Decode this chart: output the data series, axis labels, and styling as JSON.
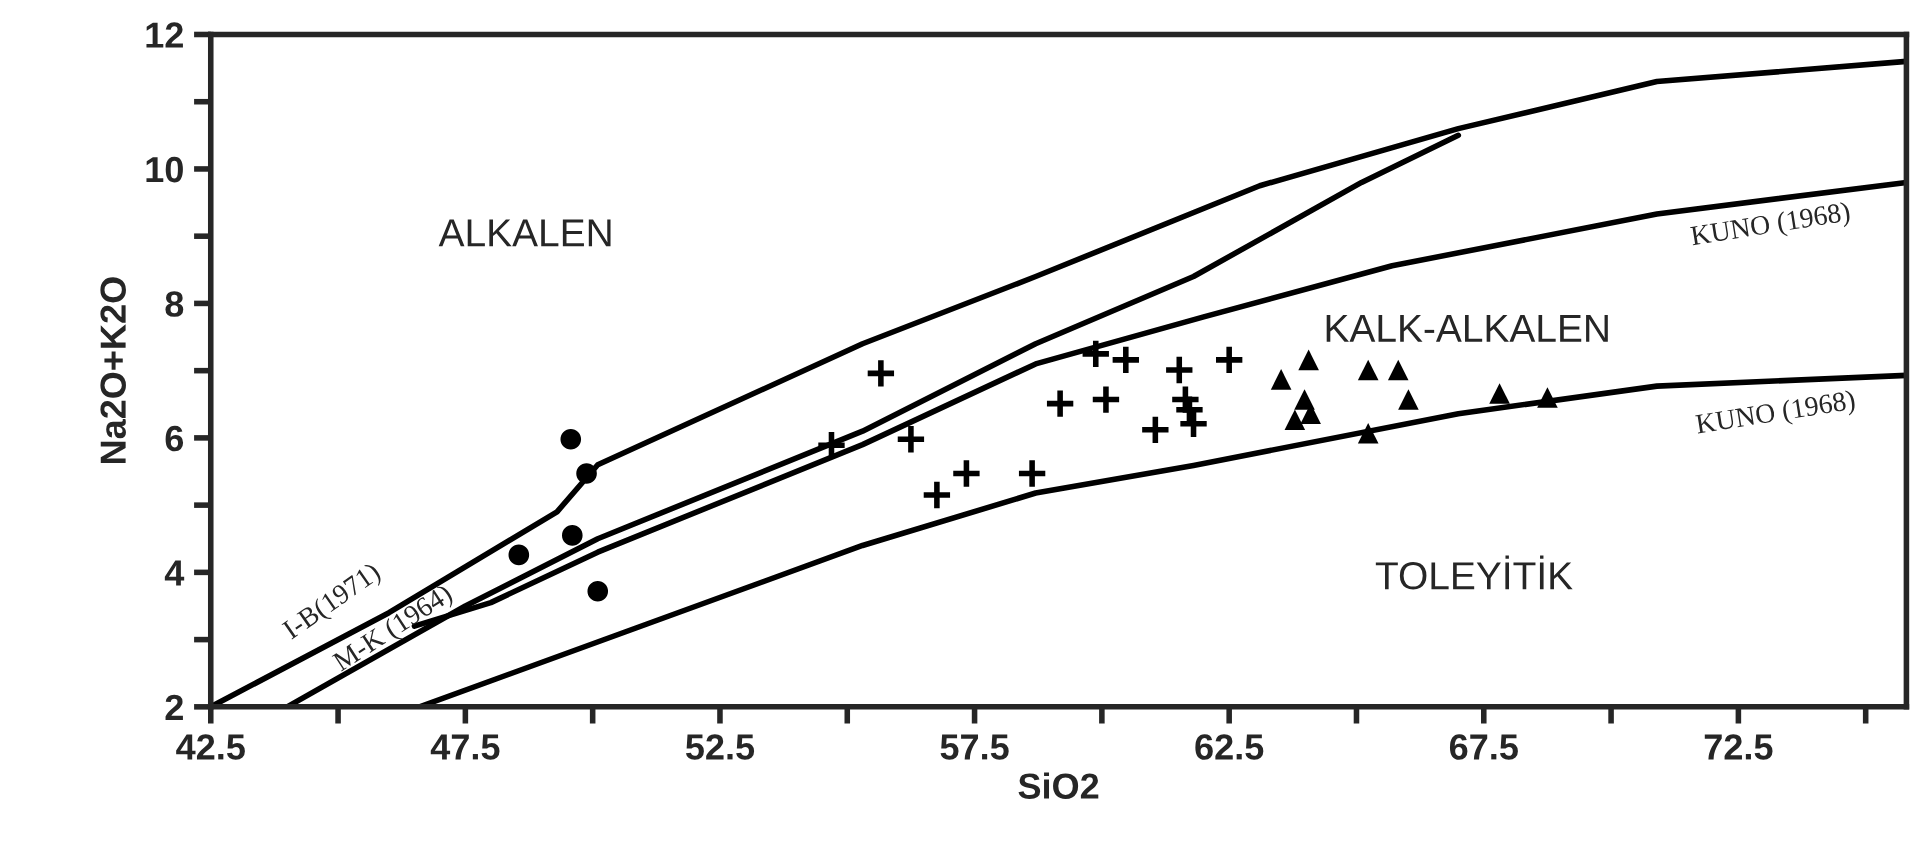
{
  "chart_data": {
    "type": "scatter",
    "xlabel": "SiO2",
    "ylabel": "Na2O+K2O",
    "xlim": [
      42.5,
      75.8
    ],
    "ylim": [
      2,
      12
    ],
    "xticks": [
      42.5,
      {
        "value": 45,
        "label": null
      },
      47.5,
      {
        "value": 50,
        "label": null
      },
      52.5,
      {
        "value": 55,
        "label": null
      },
      57.5,
      {
        "value": 60,
        "label": null
      },
      62.5,
      {
        "value": 65,
        "label": null
      },
      67.5,
      {
        "value": 70,
        "label": null
      },
      72.5,
      {
        "value": 75,
        "label": null
      }
    ],
    "yticks": [
      2,
      {
        "value": 3,
        "label": null
      },
      4,
      {
        "value": 5,
        "label": null
      },
      6,
      {
        "value": 7,
        "label": null
      },
      8,
      {
        "value": 9,
        "label": null
      },
      10,
      {
        "value": 11,
        "label": null
      },
      12
    ],
    "grid": false,
    "legend": false,
    "series": [
      {
        "marker": "circle",
        "color": "#000000",
        "x": [
          48.55,
          49.57,
          49.88,
          49.6,
          50.1
        ],
        "values": [
          4.26,
          5.98,
          5.47,
          4.55,
          3.72
        ]
      },
      {
        "marker": "cross",
        "color": "#000000",
        "x": [
          55.66,
          54.69,
          56.25,
          57.34,
          56.76,
          58.63,
          59.18,
          60.08,
          59.88,
          60.47,
          61.05,
          61.52,
          61.64,
          61.72,
          61.8,
          62.5
        ],
        "values": [
          6.96,
          5.89,
          5.98,
          5.47,
          5.15,
          5.47,
          6.51,
          6.57,
          7.25,
          7.16,
          6.12,
          7.01,
          6.57,
          6.42,
          6.21,
          7.16
        ]
      },
      {
        "marker": "triangle",
        "color": "#000000",
        "x": [
          63.52,
          64.06,
          63.98,
          63.79,
          64.1,
          65.23,
          65.23,
          65.82,
          66.02,
          67.81,
          68.75
        ],
        "values": [
          6.87,
          7.16,
          6.57,
          6.27,
          6.36,
          7.01,
          6.07,
          7.01,
          6.57,
          6.66,
          6.6
        ]
      },
      {
        "type": "line",
        "line_style": "solid",
        "color": "#000000",
        "x": [
          42.5,
          46,
          49.3,
          50.1,
          55.3,
          58.7,
          63.1,
          67,
          70.9,
          75.8
        ],
        "values": [
          2,
          3.4,
          4.9,
          5.6,
          7.4,
          8.4,
          9.75,
          10.6,
          11.3,
          11.6
        ]
      },
      {
        "type": "line",
        "line_style": "solid",
        "color": "#000000",
        "x": [
          44,
          47.5,
          50.1,
          55.3,
          58.7,
          61.8,
          65.1,
          67
        ],
        "values": [
          2,
          3.5,
          4.5,
          6.1,
          7.4,
          8.4,
          9.8,
          10.5
        ]
      },
      {
        "type": "line",
        "line_style": "solid",
        "color": "#000000",
        "x": [
          46.5,
          48,
          50.1,
          55.3,
          58.7,
          62,
          65.7,
          70.9,
          75.8
        ],
        "values": [
          3.2,
          3.55,
          4.3,
          5.9,
          7.1,
          7.8,
          8.56,
          9.33,
          9.8
        ]
      },
      {
        "type": "line",
        "line_style": "solid",
        "color": "#000000",
        "x": [
          46.6,
          55.3,
          58.7,
          61.8,
          67,
          70.9,
          75.8
        ],
        "values": [
          2,
          4.4,
          5.18,
          5.59,
          6.36,
          6.77,
          6.93
        ]
      }
    ],
    "annotations": [
      "ALKALEN",
      "KALK-ALKALEN",
      "TOLEYİTİK",
      "I-B(1971)",
      "M-K (1964)",
      "KUNO (1968)",
      "KUNO (1968)"
    ]
  }
}
